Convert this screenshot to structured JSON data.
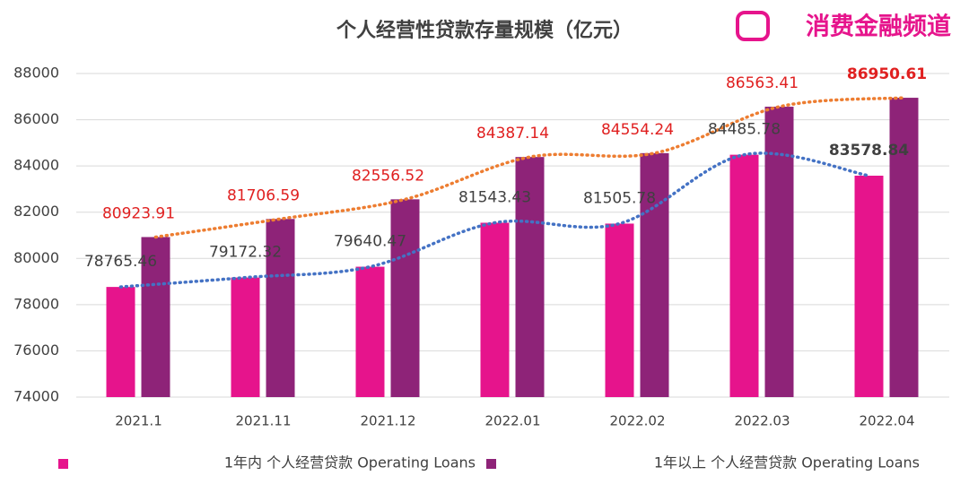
{
  "chart_data": {
    "type": "bar",
    "title": "个人经营性贷款存量规模（亿元）",
    "logo": "消费金融频道",
    "categories": [
      "2021.1",
      "2021.11",
      "2021.12",
      "2022.01",
      "2022.02",
      "2022.03",
      "2022.04"
    ],
    "series": [
      {
        "name": "1年内 个人经营贷款 Operating Loans",
        "color": "#e6148c",
        "label_color": "#404040",
        "values": [
          78765.46,
          79172.32,
          79640.47,
          81543.43,
          81505.78,
          84485.78,
          83578.84
        ]
      },
      {
        "name": "1年以上 个人经营贷款 Operating Loans",
        "color": "#8e2378",
        "label_color": "#e02020",
        "values": [
          80923.91,
          81706.59,
          82556.52,
          84387.14,
          84554.24,
          86563.41,
          86950.61
        ]
      }
    ],
    "trendline_colors": [
      "#4472c4",
      "#ed7d31"
    ],
    "ylim": [
      74000,
      88000
    ],
    "yticks": [
      74000,
      76000,
      78000,
      80000,
      82000,
      84000,
      86000,
      88000
    ],
    "grid": true
  }
}
